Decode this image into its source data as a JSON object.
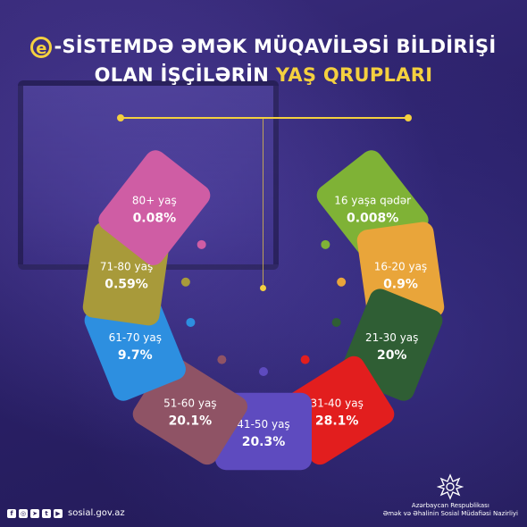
{
  "title": {
    "emark": "e",
    "line1": "-SİSTEMDƏ ƏMƏK MÜQAVİLƏSİ BİLDİRİŞİ",
    "line2_plain": "OLAN İŞÇİLƏRİN",
    "line2_highlight": "YAŞ QRUPLARI"
  },
  "colors": {
    "accent": "#f4d03f",
    "background": "#2a1f5c"
  },
  "chart_data": {
    "type": "pie",
    "categories": [
      "16 yaşa qədər",
      "16-20 yaş",
      "21-30 yaş",
      "31-40 yaş",
      "41-50 yaş",
      "51-60 yaş",
      "61-70 yaş",
      "71-80 yaş",
      "80+ yaş"
    ],
    "values": [
      0.008,
      0.9,
      20,
      28.1,
      20.3,
      20.1,
      9.7,
      0.59,
      0.08
    ],
    "value_labels": [
      "0.008%",
      "0.9%",
      "20%",
      "28.1%",
      "20.3%",
      "20.1%",
      "9.7%",
      "0.59%",
      "0.08%"
    ],
    "colors": [
      "#7fb236",
      "#e9a53a",
      "#2f5e34",
      "#e21e1e",
      "#5e4bbf",
      "#8f5365",
      "#2d8fe0",
      "#a89a3a",
      "#cf5da4"
    ],
    "unit": "%"
  },
  "footer": {
    "social_icons": [
      "facebook-icon",
      "instagram-icon",
      "telegram-icon",
      "twitter-icon",
      "youtube-icon"
    ],
    "website": "sosial.gov.az",
    "ministry_line1": "Azərbaycan Respublikası",
    "ministry_line2": "Əmək və Əhalinin Sosial Müdafiəsi Nazirliyi"
  }
}
